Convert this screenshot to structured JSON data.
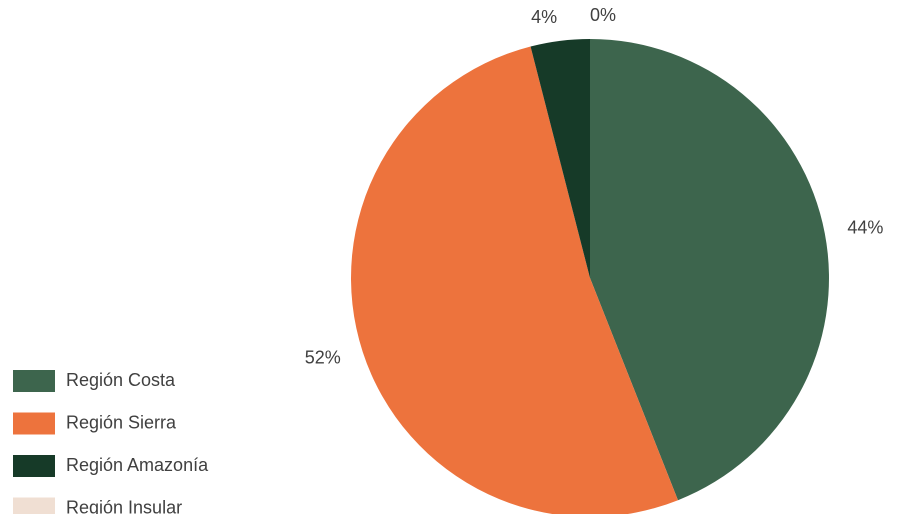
{
  "chart_data": {
    "type": "pie",
    "categories": [
      "Región Costa",
      "Región Sierra",
      "Región Amazonía",
      "Región Insular"
    ],
    "values": [
      44,
      52,
      4,
      0
    ],
    "value_labels": [
      "44%",
      "52%",
      "4%",
      "0%"
    ],
    "colors": [
      "#3d654d",
      "#ed733d",
      "#163a28",
      "#f0dfd3"
    ],
    "legend": "bottom-left"
  }
}
